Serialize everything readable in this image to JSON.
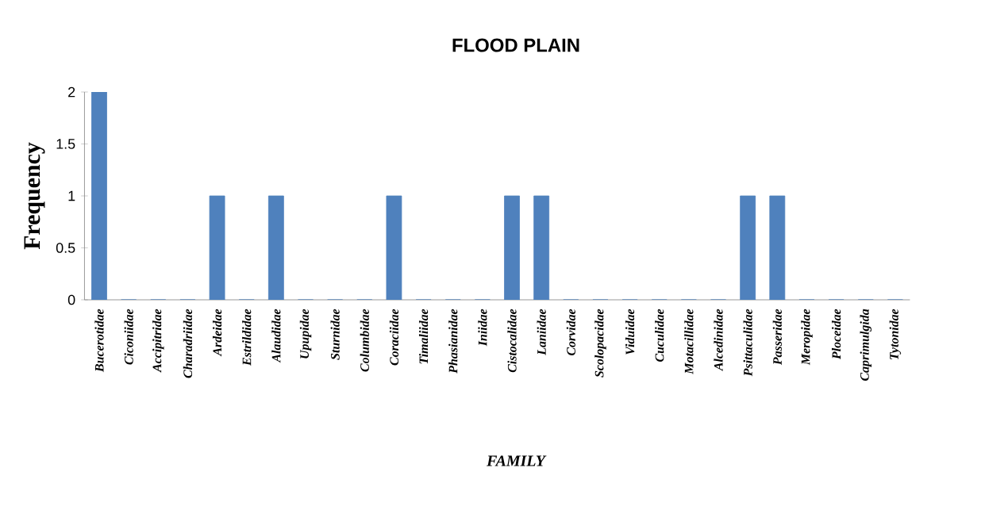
{
  "chart_data": {
    "type": "bar",
    "title": "FLOOD PLAIN",
    "xlabel": "FAMILY",
    "ylabel": "Frequency",
    "categories": [
      "Bucerotidae",
      "Ciconiidae",
      "Accipitridae",
      "Charadriidae",
      "Ardeidae",
      "Estrildidae",
      "Alaudidae",
      "Upupidae",
      "Sturnidae",
      "Columbidae",
      "Coraciidae",
      "Timaliidae",
      "Phasianidae",
      "Iniidae",
      "Cistocalidae",
      "Laniidae",
      "Corvidae",
      "Scolopacidae",
      "Viduidae",
      "Cuculidae",
      "Motacillidae",
      "Alcedinidae",
      "Psittaculidae",
      "Passeridae",
      "Meropidae",
      "Ploceidae",
      "Caprimulgida",
      "Tytonidae"
    ],
    "values": [
      2,
      0,
      0,
      0,
      1,
      0,
      1,
      0,
      0,
      0,
      1,
      0,
      0,
      0,
      1,
      1,
      0,
      0,
      0,
      0,
      0,
      0,
      1,
      1,
      0,
      0,
      0,
      0
    ],
    "color": "#4f81bd",
    "ylim": [
      0,
      2
    ],
    "yticks": [
      0,
      0.5,
      1,
      1.5,
      2
    ]
  }
}
